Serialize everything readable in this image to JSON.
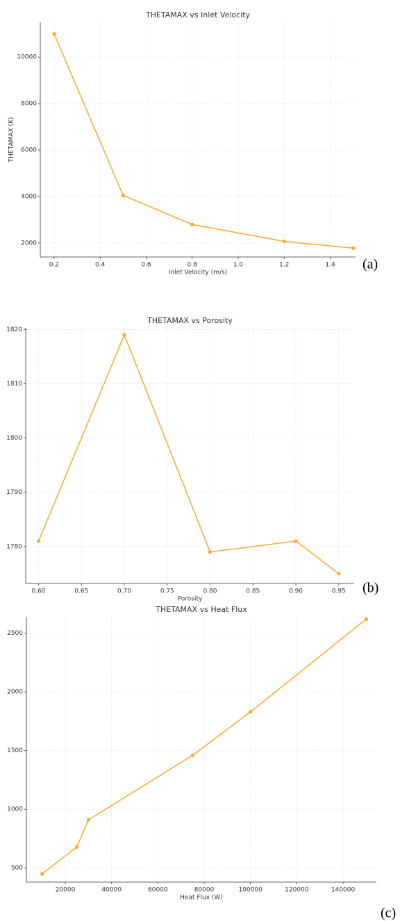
{
  "chart_data": [
    {
      "type": "line",
      "title": "THETAMAX vs Inlet Velocity",
      "x_label": "Inlet Velocity (m/s)",
      "y_label": "THETAMAX (K)",
      "panel_label": "(a)",
      "x": [
        0.2,
        0.5,
        0.8,
        1.2,
        1.5
      ],
      "series": [
        {
          "name": "THETAMAX",
          "color": "#f9a825",
          "values": [
            11000,
            4050,
            2800,
            2070,
            1780
          ]
        }
      ],
      "xlim": [
        0.14,
        1.51
      ],
      "ylim": [
        1400,
        11500
      ],
      "xticks": [
        {
          "value": 0.2,
          "label": "0.2"
        },
        {
          "value": 0.4,
          "label": "0.4"
        },
        {
          "value": 0.6,
          "label": "0.6"
        },
        {
          "value": 0.8,
          "label": "0.8"
        },
        {
          "value": 1.0,
          "label": "1.0"
        },
        {
          "value": 1.2,
          "label": "1.2"
        },
        {
          "value": 1.4,
          "label": "1.4"
        }
      ],
      "yticks": [
        2000,
        4000,
        6000,
        8000,
        10000
      ],
      "grid": true
    },
    {
      "type": "line",
      "title": "THETAMAX vs Porosity",
      "x_label": "Porosity",
      "panel_label": "(b)",
      "x": [
        0.6,
        0.7,
        0.8,
        0.9,
        0.95
      ],
      "series": [
        {
          "name": "THETAMAX",
          "color": "#f9a825",
          "values": [
            1781,
            1819,
            1779,
            1781,
            1775
          ]
        }
      ],
      "xlim": [
        0.585,
        0.968
      ],
      "ylim": [
        1773.2,
        1820.3
      ],
      "xticks": [
        {
          "value": 0.6,
          "label": "0.60"
        },
        {
          "value": 0.65,
          "label": "0.65"
        },
        {
          "value": 0.7,
          "label": "0.70"
        },
        {
          "value": 0.75,
          "label": "0.75"
        },
        {
          "value": 0.8,
          "label": "0.80"
        },
        {
          "value": 0.85,
          "label": "0.85"
        },
        {
          "value": 0.9,
          "label": "0.90"
        },
        {
          "value": 0.95,
          "label": "0.95"
        }
      ],
      "yticks": [
        1780,
        1790,
        1800,
        1810,
        1820
      ],
      "grid": true
    },
    {
      "type": "line",
      "title": "THETAMAX vs Heat Flux",
      "x_label": "Heat Flux (W)",
      "panel_label": "(c)",
      "x": [
        10000,
        25000,
        30000,
        75000,
        100000,
        150000
      ],
      "series": [
        {
          "name": "THETAMAX",
          "color": "#f9a825",
          "values": [
            450,
            680,
            910,
            1460,
            1830,
            2620
          ]
        }
      ],
      "xlim": [
        3200,
        154400
      ],
      "ylim": [
        380,
        2640
      ],
      "xticks": [
        20000,
        40000,
        60000,
        80000,
        100000,
        120000,
        140000
      ],
      "yticks": [
        500,
        1000,
        1500,
        2000,
        2500
      ],
      "grid": true
    }
  ]
}
